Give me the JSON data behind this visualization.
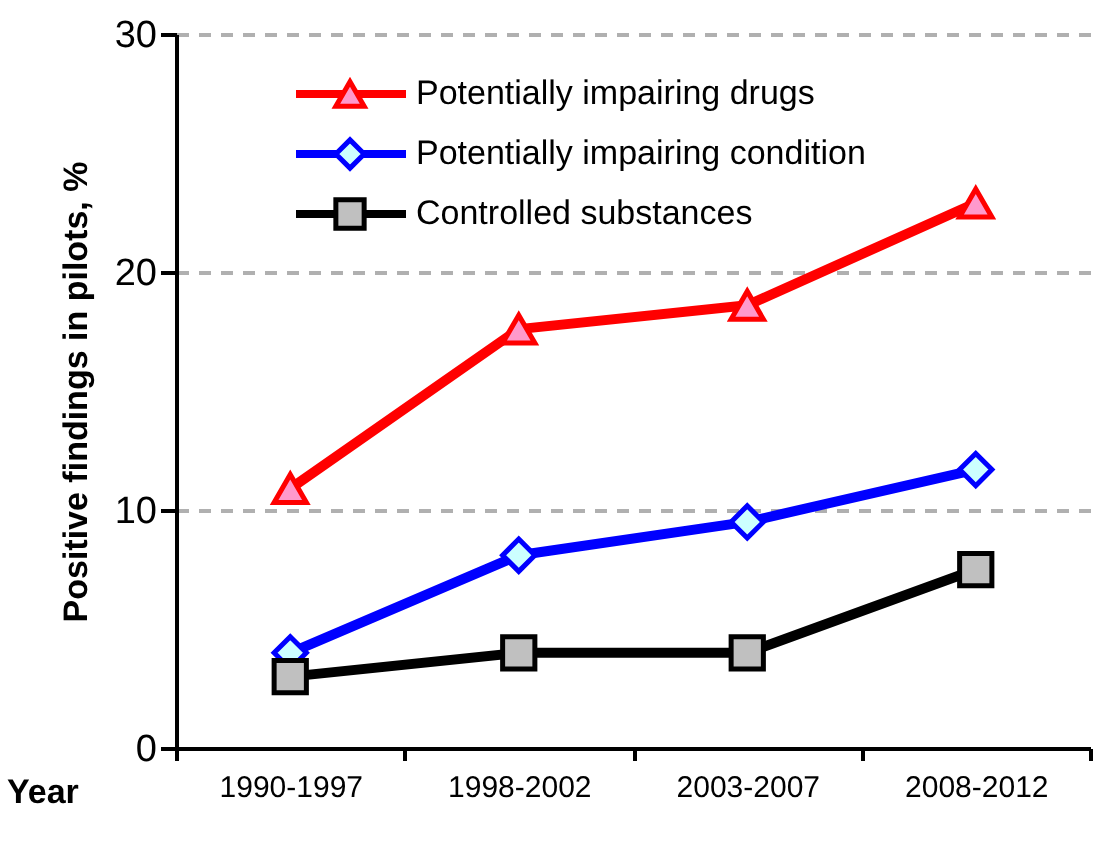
{
  "chart_data": {
    "type": "line",
    "xlabel": "Year",
    "ylabel": "Positive findings in pilots, %",
    "categories": [
      "1990-1997",
      "1998-2002",
      "2003-2007",
      "2008-2012"
    ],
    "series": [
      {
        "name": "Potentially impairing drugs",
        "color": "#ff0000",
        "marker": "triangle",
        "values": [
          10.9,
          17.6,
          18.6,
          22.9
        ]
      },
      {
        "name": "Potentially impairing condition",
        "color": "#0000ff",
        "marker": "diamond",
        "values": [
          4.0,
          8.1,
          9.5,
          11.7
        ]
      },
      {
        "name": "Controlled substances",
        "color": "#000000",
        "marker": "square",
        "values": [
          3.0,
          4.0,
          4.0,
          7.5
        ]
      }
    ],
    "ylim": [
      0,
      30
    ],
    "yticks": [
      0,
      10,
      20,
      30
    ],
    "grid": "y",
    "legend": "top left",
    "line_style": "solid"
  }
}
